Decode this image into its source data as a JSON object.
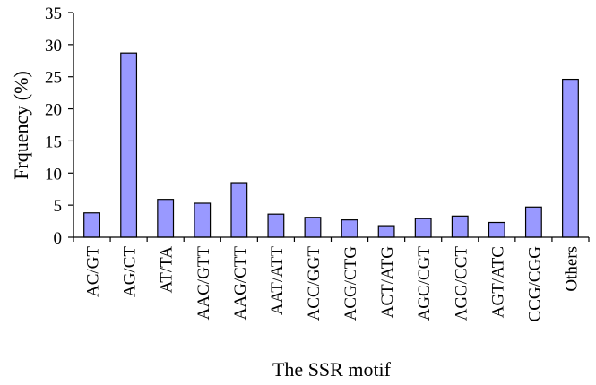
{
  "chart_data": {
    "type": "bar",
    "title": "",
    "xlabel": "The SSR motif",
    "ylabel": "Frquency (%)",
    "ylim": [
      0,
      35
    ],
    "yticks": [
      0,
      5,
      10,
      15,
      20,
      25,
      30,
      35
    ],
    "grid": false,
    "legend": "none",
    "categories": [
      "AC/GT",
      "AG/CT",
      "AT/TA",
      "AAC/GTT",
      "AAG/CTT",
      "AAT/ATT",
      "ACC/GGT",
      "ACG/CTG",
      "ACT/ATG",
      "AGC/CGT",
      "AGG/CCT",
      "AGT/ATC",
      "CCG/CGG",
      "Others"
    ],
    "values": [
      3.8,
      28.7,
      5.9,
      5.3,
      8.5,
      3.6,
      3.1,
      2.7,
      1.8,
      2.9,
      3.3,
      2.3,
      4.7,
      24.6
    ]
  },
  "colors": {
    "bar_fill": "#9999ff",
    "bar_stroke": "#000000",
    "axis": "#000000"
  }
}
